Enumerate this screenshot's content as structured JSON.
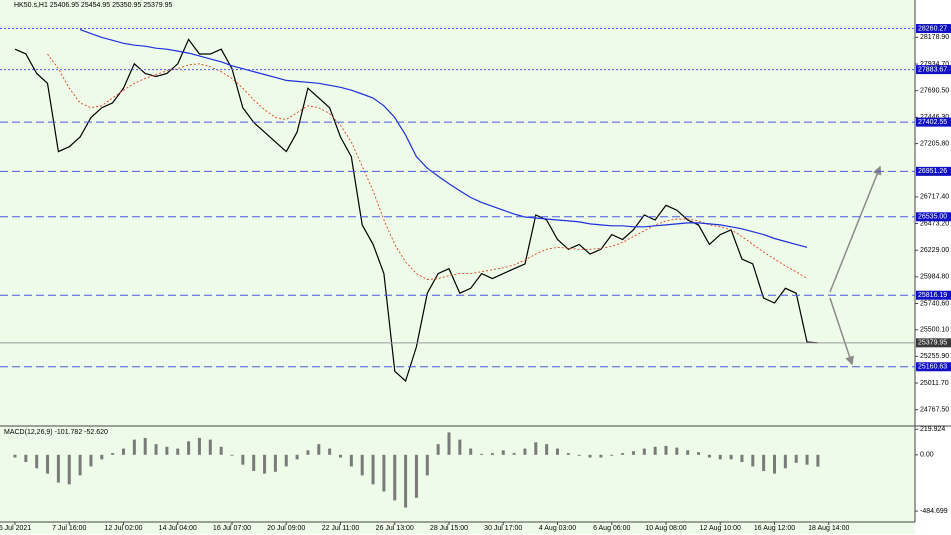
{
  "chart_data": [
    {
      "type": "line",
      "title": "HK50.s,H1 25406.95 25454.95 25350.95 25379.95",
      "categories": [
        "5 Jul 2021",
        null,
        null,
        null,
        null,
        "7 Jul 16:00",
        null,
        null,
        null,
        null,
        "12 Jul 02:00",
        null,
        null,
        null,
        null,
        "14 Jul 04:00",
        null,
        null,
        null,
        null,
        "16 Jul 07:00",
        null,
        null,
        null,
        null,
        "20 Jul 09:00",
        null,
        null,
        null,
        null,
        "22 Jul 11:00",
        null,
        null,
        null,
        null,
        "26 Jul 13:00",
        null,
        null,
        null,
        null,
        "28 Jul 15:00",
        null,
        null,
        null,
        null,
        "30 Jul 17:00",
        null,
        null,
        null,
        null,
        "4 Aug 03:00",
        null,
        null,
        null,
        null,
        "6 Aug 06:00",
        null,
        null,
        null,
        null,
        "10 Aug 08:00",
        null,
        null,
        null,
        null,
        "12 Aug 10:00",
        null,
        null,
        null,
        null,
        "16 Aug 12:00",
        null,
        null,
        null,
        null,
        "18 Aug 14:00"
      ],
      "series": [
        {
          "color": "#000000",
          "style": "solid",
          "values": [
            28071,
            28027,
            27848,
            27758,
            27132,
            27177,
            27266,
            27445,
            27535,
            27579,
            27713,
            27937,
            27848,
            27821,
            27848,
            27937,
            28161,
            28027,
            28027,
            28071,
            27892,
            27535,
            27400,
            27311,
            27221,
            27132,
            27311,
            27713,
            27624,
            27535,
            27266,
            27087,
            26461,
            26282,
            26014,
            25119,
            25030,
            25343,
            25835,
            26014,
            26059,
            25835,
            25880,
            26014,
            25969,
            26014,
            26059,
            26103,
            26551,
            26506,
            26327,
            26237,
            26282,
            26193,
            26237,
            26372,
            26327,
            26416,
            26551,
            26506,
            26640,
            26595,
            26506,
            26461,
            26282,
            26372,
            26416,
            26148,
            26103,
            25790,
            25745,
            25880,
            25835,
            25388,
            25380,
            null
          ]
        },
        {
          "color": "#e03c1e",
          "style": "dotted",
          "values": [
            null,
            null,
            null,
            28027,
            27892,
            27713,
            27579,
            27535,
            27553,
            27624,
            27695,
            27758,
            27803,
            27839,
            27874,
            27892,
            27928,
            27937,
            27910,
            27865,
            27803,
            27713,
            27606,
            27517,
            27445,
            27427,
            27490,
            27553,
            27535,
            27481,
            27373,
            27221,
            26998,
            26774,
            26506,
            26282,
            26121,
            26014,
            25960,
            25969,
            25996,
            26014,
            26014,
            26032,
            26050,
            26068,
            26094,
            26139,
            26193,
            26237,
            26255,
            26246,
            26237,
            26237,
            26246,
            26264,
            26300,
            26354,
            26407,
            26461,
            26497,
            26515,
            26515,
            26497,
            26461,
            26443,
            26416,
            26354,
            26282,
            26211,
            26148,
            26085,
            26032,
            25969,
            null,
            null
          ]
        },
        {
          "color": "#1f2fdc",
          "style": "solid",
          "values": [
            null,
            null,
            null,
            null,
            null,
            null,
            28250,
            28214,
            28179,
            28152,
            28125,
            28107,
            28098,
            28080,
            28071,
            28053,
            28035,
            28009,
            27982,
            27955,
            27919,
            27892,
            27865,
            27839,
            27812,
            27785,
            27776,
            27767,
            27758,
            27740,
            27722,
            27695,
            27660,
            27624,
            27552,
            27445,
            27284,
            27087,
            26980,
            26908,
            26837,
            26774,
            26712,
            26667,
            26631,
            26595,
            26560,
            26533,
            26524,
            26515,
            26506,
            26497,
            26488,
            26470,
            26461,
            26452,
            26452,
            26443,
            26443,
            26452,
            26461,
            26470,
            26479,
            26479,
            26470,
            26461,
            26443,
            26425,
            26398,
            26372,
            26336,
            26309,
            26282,
            26255,
            null,
            null
          ]
        }
      ],
      "ylim": [
        24627,
        28430
      ],
      "yticks": [
        {
          "value": 28178.9,
          "label": "28178.90"
        },
        {
          "value": 27934.7,
          "label": "27934.70"
        },
        {
          "value": 27690.5,
          "label": "27690.50"
        },
        {
          "value": 27446.3,
          "label": "27446.30"
        },
        {
          "value": 27205.8,
          "label": "27205.80"
        },
        {
          "value": 26717.4,
          "label": "26717.40"
        },
        {
          "value": 26473.2,
          "label": "26473.20"
        },
        {
          "value": 26229,
          "label": "26229.00"
        },
        {
          "value": 25984.8,
          "label": "25984.80"
        },
        {
          "value": 25740.6,
          "label": "25740.60"
        },
        {
          "value": 25500.1,
          "label": "25500.10"
        },
        {
          "value": 25255.9,
          "label": "25255.90"
        },
        {
          "value": 25011.7,
          "label": "25011.70"
        },
        {
          "value": 24767.5,
          "label": "24767.50"
        }
      ],
      "level_color": "#4a5be0",
      "levels": [
        {
          "value": 28260.27,
          "style": "dotted"
        },
        {
          "value": 27883.67,
          "style": "dotted"
        },
        {
          "value": 27402.55,
          "style": "dashed"
        },
        {
          "value": 26951.26,
          "style": "dashed"
        },
        {
          "value": 26535,
          "label": "26535.00",
          "style": "dashed"
        },
        {
          "value": 25816.19,
          "style": "dashed"
        },
        {
          "value": 25379.95,
          "style": "solid",
          "color": "#9a9a9a"
        },
        {
          "value": 25160.63,
          "style": "dashed"
        }
      ]
    },
    {
      "type": "bar",
      "title": "MACD(12,26,9) -101.782 -52.620",
      "color": "#7a7a7a",
      "values": [
        -23,
        -62,
        -116,
        -162,
        -239,
        -254,
        -177,
        -100,
        -39,
        15,
        54,
        131,
        146,
        92,
        69,
        54,
        116,
        146,
        131,
        69,
        -8,
        -85,
        -139,
        -162,
        -146,
        -100,
        -39,
        39,
        92,
        54,
        -23,
        -100,
        -177,
        -254,
        -316,
        -393,
        -454,
        -370,
        -177,
        92,
        193,
        131,
        54,
        8,
        15,
        39,
        15,
        54,
        108,
        92,
        54,
        15,
        -8,
        -23,
        -23,
        -8,
        15,
        31,
        54,
        69,
        77,
        62,
        39,
        23,
        -23,
        -39,
        -39,
        -62,
        -100,
        -139,
        -162,
        -116,
        -69,
        -85,
        -101.782,
        null
      ],
      "ylim": [
        -570,
        231
      ],
      "yticks": [
        219.924,
        {
          "value": 0,
          "label": "0.00"
        },
        -484.699
      ]
    }
  ]
}
